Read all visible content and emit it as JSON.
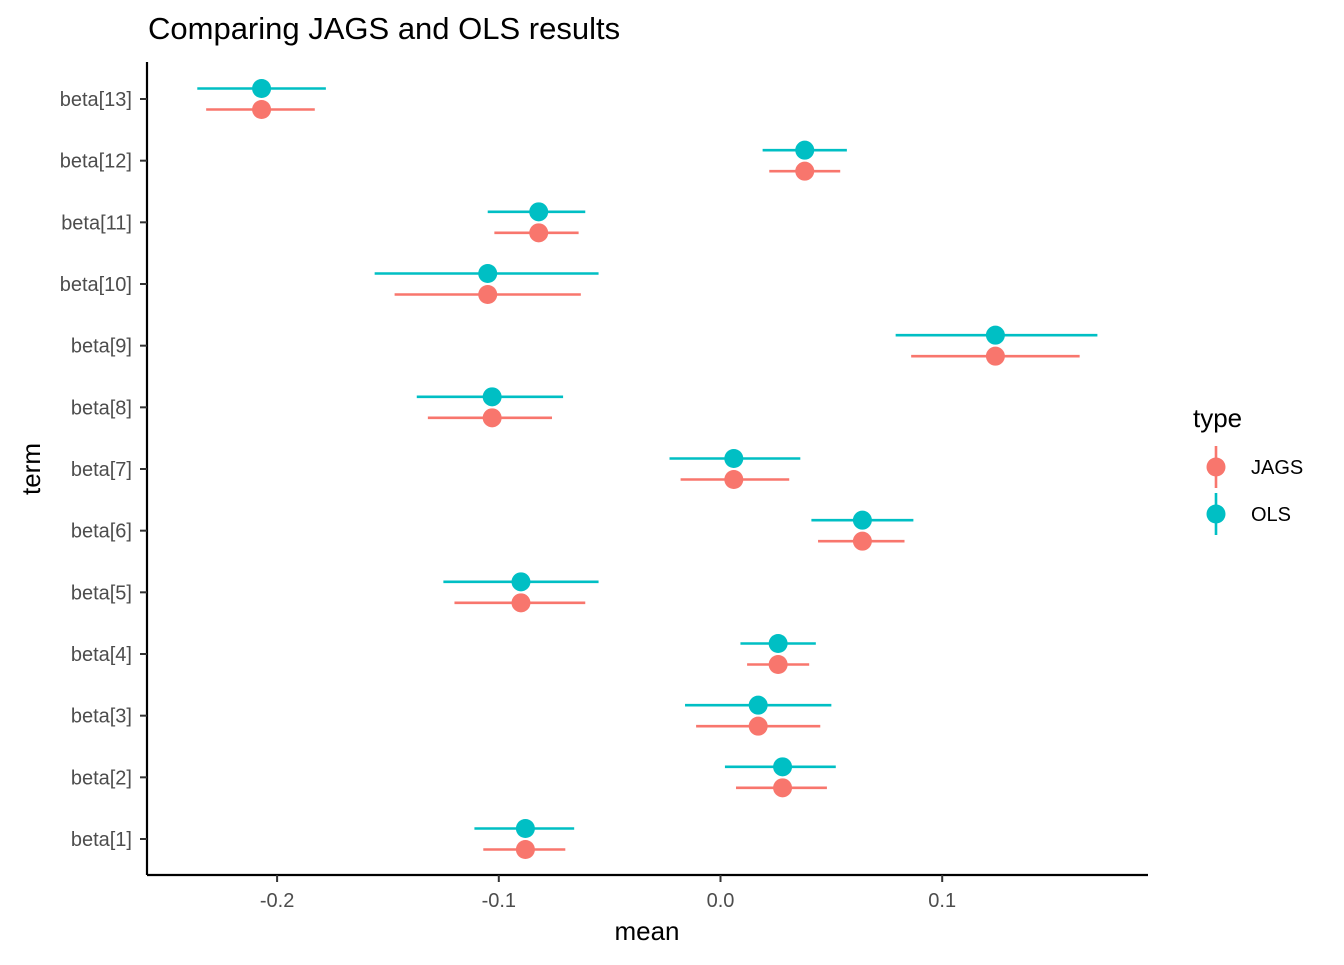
{
  "chart_data": {
    "type": "scatter",
    "title": "Comparing JAGS and OLS results",
    "xlabel": "mean",
    "ylabel": "term",
    "xlim": [
      -0.255,
      0.19
    ],
    "x_ticks": [
      -0.2,
      -0.1,
      0.0,
      0.1
    ],
    "x_tick_labels": [
      "-0.2",
      "-0.1",
      "0.0",
      "0.1"
    ],
    "categories": [
      "beta[1]",
      "beta[2]",
      "beta[3]",
      "beta[4]",
      "beta[5]",
      "beta[6]",
      "beta[7]",
      "beta[8]",
      "beta[9]",
      "beta[10]",
      "beta[11]",
      "beta[12]",
      "beta[13]"
    ],
    "grid": false,
    "legend": {
      "title": "type",
      "position": "right"
    },
    "series": [
      {
        "name": "JAGS",
        "color": "#F8766D",
        "mean": [
          -0.088,
          0.028,
          0.017,
          0.026,
          -0.09,
          0.064,
          0.006,
          -0.103,
          0.124,
          -0.105,
          -0.082,
          0.038,
          -0.207
        ],
        "lower": [
          -0.107,
          0.007,
          -0.011,
          0.012,
          -0.12,
          0.044,
          -0.018,
          -0.132,
          0.086,
          -0.147,
          -0.102,
          0.022,
          -0.232
        ],
        "upper": [
          -0.07,
          0.048,
          0.045,
          0.04,
          -0.061,
          0.083,
          0.031,
          -0.076,
          0.162,
          -0.063,
          -0.064,
          0.054,
          -0.183
        ]
      },
      {
        "name": "OLS",
        "color": "#00BFC4",
        "mean": [
          -0.088,
          0.028,
          0.017,
          0.026,
          -0.09,
          0.064,
          0.006,
          -0.103,
          0.124,
          -0.105,
          -0.082,
          0.038,
          -0.207
        ],
        "lower": [
          -0.111,
          0.002,
          -0.016,
          0.009,
          -0.125,
          0.041,
          -0.023,
          -0.137,
          0.079,
          -0.156,
          -0.105,
          0.019,
          -0.236
        ],
        "upper": [
          -0.066,
          0.052,
          0.05,
          0.043,
          -0.055,
          0.087,
          0.036,
          -0.071,
          0.17,
          -0.055,
          -0.061,
          0.057,
          -0.178
        ]
      }
    ]
  }
}
